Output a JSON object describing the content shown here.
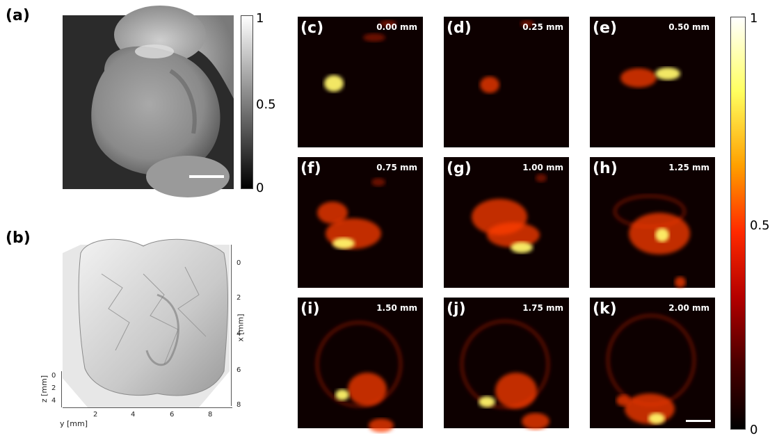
{
  "panel_a": {
    "label": "(a)",
    "colorbar_ticks": [
      "1",
      "0.5",
      "0"
    ]
  },
  "panel_b": {
    "label": "(b)",
    "x_axis_label": "x [mm]",
    "x_ticks": [
      "0",
      "2",
      "4",
      "6",
      "8"
    ],
    "y_axis_label": "y [mm]",
    "y_ticks": [
      "2",
      "4",
      "6",
      "8"
    ],
    "z_axis_label": "z [mm]",
    "z_ticks": [
      "0",
      "2",
      "4"
    ]
  },
  "slices": [
    {
      "label": "(c)",
      "depth": "0.00 mm"
    },
    {
      "label": "(d)",
      "depth": "0.25 mm"
    },
    {
      "label": "(e)",
      "depth": "0.50 mm"
    },
    {
      "label": "(f)",
      "depth": "0.75 mm"
    },
    {
      "label": "(g)",
      "depth": "1.00 mm"
    },
    {
      "label": "(h)",
      "depth": "1.25 mm"
    },
    {
      "label": "(i)",
      "depth": "1.50 mm"
    },
    {
      "label": "(j)",
      "depth": "1.75 mm"
    },
    {
      "label": "(k)",
      "depth": "2.00 mm"
    }
  ],
  "hot_colorbar_ticks": [
    "1",
    "0.5",
    "0"
  ],
  "colors": {
    "tile_background": "#0d0000",
    "signal_dim": "#8a1200",
    "signal_mid": "#ff3c00",
    "signal_hot": "#fff46a"
  }
}
